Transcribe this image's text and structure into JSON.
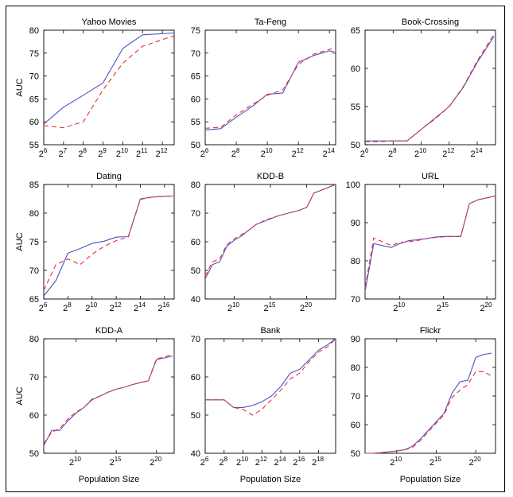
{
  "figure": {
    "y_axis_label": "AUC",
    "x_axis_label": "Population Size"
  },
  "style": {
    "series_colors": [
      "#5050c8",
      "#e83030"
    ],
    "series_dashes": [
      "",
      "6,4"
    ]
  },
  "chart_data": [
    {
      "type": "line",
      "title": "Yahoo Movies",
      "xlabel": "",
      "ylabel": "AUC",
      "x_scale": "log2",
      "xlim": [
        6,
        12.6
      ],
      "ylim": [
        55,
        80
      ],
      "yticks": [
        55,
        60,
        65,
        70,
        75,
        80
      ],
      "xtick_exponents": [
        6,
        7,
        8,
        9,
        10,
        11,
        12
      ],
      "series": [
        {
          "x": [
            6,
            7,
            8,
            9,
            10,
            11,
            12.6
          ],
          "y": [
            59.5,
            63.2,
            65.8,
            68.5,
            76,
            79,
            79.4
          ]
        },
        {
          "x": [
            6,
            7,
            8,
            8.5,
            9,
            10,
            11,
            12.6
          ],
          "y": [
            59.2,
            58.7,
            60,
            63.5,
            67,
            72.8,
            76.5,
            78.8
          ]
        }
      ]
    },
    {
      "type": "line",
      "title": "Ta-Feng",
      "xlabel": "",
      "ylabel": "",
      "x_scale": "log2",
      "xlim": [
        6,
        14.4
      ],
      "ylim": [
        50,
        75
      ],
      "yticks": [
        50,
        55,
        60,
        65,
        70,
        75
      ],
      "xtick_exponents": [
        6,
        8,
        10,
        12,
        14
      ],
      "series": [
        {
          "x": [
            6,
            7,
            8,
            9,
            10,
            11,
            12,
            13,
            14,
            14.3
          ],
          "y": [
            53.2,
            53.5,
            56,
            58.3,
            61,
            61.3,
            68,
            69.5,
            70.5,
            70.3
          ]
        },
        {
          "x": [
            6,
            7,
            8,
            9,
            10,
            11,
            12,
            13,
            14,
            14.3
          ],
          "y": [
            53.6,
            53.8,
            56.5,
            58.7,
            60.8,
            62,
            67.5,
            69.8,
            70.8,
            71.2
          ]
        }
      ]
    },
    {
      "type": "line",
      "title": "Book-Crossing",
      "xlabel": "",
      "ylabel": "",
      "x_scale": "log2",
      "xlim": [
        6,
        15.3
      ],
      "ylim": [
        50,
        65
      ],
      "yticks": [
        50,
        55,
        60,
        65
      ],
      "xtick_exponents": [
        6,
        8,
        10,
        12,
        14
      ],
      "series": [
        {
          "x": [
            6,
            7,
            8,
            9,
            10,
            11,
            12,
            13,
            14,
            15.2
          ],
          "y": [
            50.5,
            50.5,
            50.5,
            50.5,
            52,
            53.5,
            55,
            57.5,
            60.8,
            64.2
          ]
        },
        {
          "x": [
            6,
            7,
            8,
            9,
            10,
            11,
            12,
            13,
            14,
            15.2
          ],
          "y": [
            50.4,
            50.4,
            50.5,
            50.5,
            52,
            53.4,
            55,
            57.6,
            61,
            64.5
          ]
        }
      ]
    },
    {
      "type": "line",
      "title": "Dating",
      "xlabel": "",
      "ylabel": "AUC",
      "x_scale": "log2",
      "xlim": [
        6,
        16.8
      ],
      "ylim": [
        65,
        85
      ],
      "yticks": [
        65,
        70,
        75,
        80,
        85
      ],
      "xtick_exponents": [
        6,
        8,
        10,
        12,
        14,
        16
      ],
      "series": [
        {
          "x": [
            6,
            7,
            8,
            9,
            10,
            11,
            12,
            13,
            14,
            15,
            16.7
          ],
          "y": [
            65.5,
            68.2,
            73,
            73.8,
            74.7,
            75.1,
            75.8,
            75.9,
            82.5,
            82.8,
            83
          ]
        },
        {
          "x": [
            6,
            7,
            8,
            9,
            10,
            11,
            12,
            13,
            14,
            15,
            16.7
          ],
          "y": [
            66.5,
            71,
            72,
            71,
            72.8,
            74.2,
            75.2,
            75.8,
            82.4,
            82.8,
            83
          ]
        }
      ]
    },
    {
      "type": "line",
      "title": "KDD-B",
      "xlabel": "",
      "ylabel": "",
      "x_scale": "log2",
      "xlim": [
        6,
        24
      ],
      "ylim": [
        40,
        80
      ],
      "yticks": [
        40,
        50,
        60,
        70,
        80
      ],
      "xtick_exponents": [
        10,
        15,
        20
      ],
      "series": [
        {
          "x": [
            6,
            7,
            8,
            9,
            10,
            11,
            12,
            13,
            14,
            15,
            16,
            17,
            18,
            19,
            20,
            21,
            22,
            23,
            24
          ],
          "y": [
            47,
            52,
            53,
            58.5,
            60.5,
            62,
            64,
            66,
            67,
            68,
            69,
            69.7,
            70.3,
            71,
            72,
            77,
            78,
            79,
            80
          ]
        },
        {
          "x": [
            6,
            7,
            8,
            9,
            10,
            11,
            12,
            13,
            14,
            15,
            16,
            17,
            18,
            19,
            20,
            21,
            22,
            23,
            24
          ],
          "y": [
            48,
            53,
            54,
            59,
            61,
            62.5,
            64,
            66,
            67.2,
            68.2,
            69,
            69.7,
            70.3,
            71,
            72,
            77,
            78,
            79,
            80
          ]
        }
      ]
    },
    {
      "type": "line",
      "title": "URL",
      "xlabel": "",
      "ylabel": "",
      "x_scale": "log2",
      "xlim": [
        6,
        21
      ],
      "ylim": [
        70,
        100
      ],
      "yticks": [
        70,
        80,
        90,
        100
      ],
      "xtick_exponents": [
        10,
        15,
        20
      ],
      "series": [
        {
          "x": [
            6,
            7,
            8,
            9,
            10,
            11,
            12,
            13,
            14,
            15,
            16,
            17,
            18,
            19,
            20,
            21
          ],
          "y": [
            72,
            84.5,
            84,
            83.5,
            84.5,
            85.3,
            85.5,
            85.8,
            86.2,
            86.4,
            86.4,
            86.4,
            95,
            96,
            96.5,
            97
          ]
        },
        {
          "x": [
            6,
            7,
            8,
            9,
            10,
            11,
            12,
            13,
            14,
            15,
            16,
            17,
            18,
            19,
            20,
            21
          ],
          "y": [
            73,
            86,
            85,
            84,
            84.8,
            85,
            85.3,
            85.8,
            86.1,
            86.3,
            86.4,
            86.4,
            95,
            96,
            96.5,
            97
          ]
        }
      ]
    },
    {
      "type": "line",
      "title": "KDD-A",
      "xlabel": "Population Size",
      "ylabel": "AUC",
      "x_scale": "log2",
      "xlim": [
        6,
        22.2
      ],
      "ylim": [
        50,
        80
      ],
      "yticks": [
        50,
        60,
        70,
        80
      ],
      "xtick_exponents": [
        10,
        15,
        20
      ],
      "series": [
        {
          "x": [
            6,
            7,
            8,
            9,
            10,
            11,
            12,
            13,
            14,
            15,
            16,
            17,
            18,
            19,
            20,
            21,
            22
          ],
          "y": [
            52,
            56,
            56,
            58.5,
            60.5,
            62,
            64,
            65,
            66,
            66.8,
            67.3,
            68,
            68.5,
            69,
            74.5,
            75,
            75.5
          ]
        },
        {
          "x": [
            6,
            7,
            8,
            9,
            10,
            11,
            12,
            13,
            14,
            15,
            16,
            17,
            18,
            19,
            20,
            21,
            22
          ],
          "y": [
            52.5,
            55.5,
            56.5,
            59,
            60.8,
            62,
            64.2,
            65,
            66,
            66.8,
            67.3,
            68,
            68.5,
            69,
            74.8,
            75.2,
            76
          ]
        }
      ]
    },
    {
      "type": "line",
      "title": "Bank",
      "xlabel": "Population Size",
      "ylabel": "",
      "x_scale": "log2",
      "xlim": [
        6,
        19.8
      ],
      "ylim": [
        40,
        70
      ],
      "yticks": [
        40,
        50,
        60,
        70
      ],
      "xtick_exponents": [
        6,
        8,
        10,
        12,
        14,
        16,
        18
      ],
      "series": [
        {
          "x": [
            6,
            7,
            8,
            9,
            10,
            11,
            12,
            13,
            14,
            15,
            16,
            17,
            18,
            19,
            19.8
          ],
          "y": [
            54,
            54,
            54,
            52,
            52,
            52.5,
            53.5,
            55,
            57.5,
            61,
            62,
            64.5,
            67,
            68.5,
            70
          ]
        },
        {
          "x": [
            6,
            7,
            8,
            9,
            10,
            11,
            12,
            13,
            14,
            15,
            16,
            17,
            18,
            19,
            19.8
          ],
          "y": [
            54,
            54,
            54,
            52,
            51.5,
            50,
            51.5,
            54,
            56.5,
            59.5,
            61,
            64,
            66.5,
            68,
            70
          ]
        }
      ]
    },
    {
      "type": "line",
      "title": "Flickr",
      "xlabel": "Population Size",
      "ylabel": "",
      "x_scale": "log2",
      "xlim": [
        6,
        22.5
      ],
      "ylim": [
        50,
        90
      ],
      "yticks": [
        50,
        60,
        70,
        80,
        90
      ],
      "xtick_exponents": [
        10,
        15,
        20
      ],
      "series": [
        {
          "x": [
            6,
            7,
            8,
            9,
            10,
            11,
            12,
            13,
            14,
            15,
            16,
            17,
            18,
            19,
            20,
            21,
            22
          ],
          "y": [
            50,
            50,
            50.2,
            50.5,
            50.8,
            51.2,
            52.5,
            55,
            58,
            61,
            64,
            71,
            75,
            75.5,
            83.5,
            84.5,
            85
          ]
        },
        {
          "x": [
            6,
            7,
            8,
            9,
            10,
            11,
            12,
            13,
            14,
            15,
            16,
            17,
            18,
            19,
            20,
            21,
            22
          ],
          "y": [
            50,
            50,
            50.2,
            50.5,
            50.8,
            51.2,
            52,
            54.5,
            57.5,
            60.5,
            63.5,
            69.5,
            72,
            74,
            78.5,
            78.5,
            77
          ]
        }
      ]
    }
  ]
}
